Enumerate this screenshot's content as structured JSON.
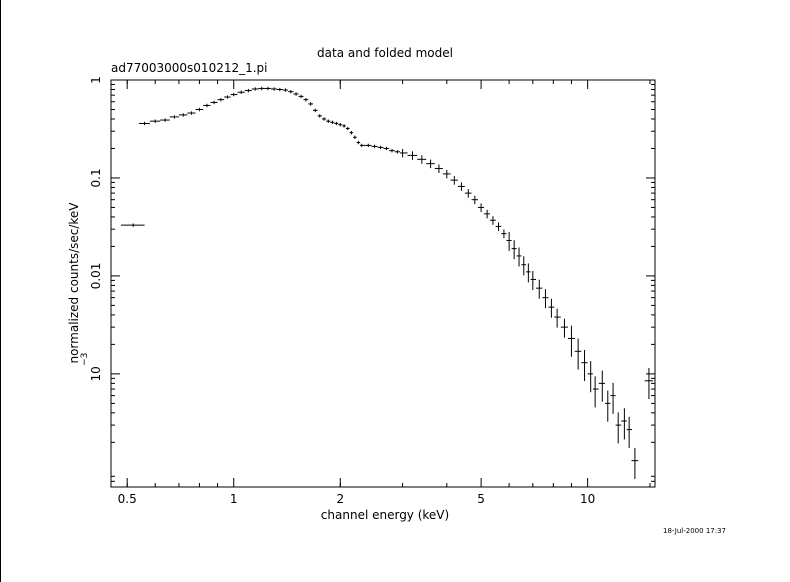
{
  "chart_data": {
    "type": "scatter",
    "title": "data and folded model",
    "subtitle": "ad77003000s010212_1.pi",
    "xlabel": "channel energy (keV)",
    "ylabel": "normalized counts/sec/keV",
    "xscale": "log",
    "yscale": "log",
    "xlim": [
      0.45,
      15.5
    ],
    "ylim": [
      7e-05,
      1.0
    ],
    "x_ticks": [
      {
        "value": 0.5,
        "label": "0.5"
      },
      {
        "value": 1,
        "label": "1"
      },
      {
        "value": 2,
        "label": "2"
      },
      {
        "value": 5,
        "label": "5"
      },
      {
        "value": 10,
        "label": "10"
      }
    ],
    "y_ticks": [
      {
        "value": 1,
        "label": "1"
      },
      {
        "value": 0.1,
        "label": "0.1"
      },
      {
        "value": 0.01,
        "label": "0.01"
      },
      {
        "value": 0.001,
        "label": "10",
        "exponent": "−3"
      }
    ],
    "timestamp": "18-Jul-2000 17:37",
    "color": "#000000",
    "series": [
      {
        "points": [
          {
            "x": 0.52,
            "y": 0.033,
            "xerr": [
              0.48,
              0.56
            ]
          },
          {
            "x": 0.56,
            "y": 0.36
          },
          {
            "x": 0.6,
            "y": 0.38
          },
          {
            "x": 0.64,
            "y": 0.39
          },
          {
            "x": 0.68,
            "y": 0.42
          },
          {
            "x": 0.72,
            "y": 0.44
          },
          {
            "x": 0.76,
            "y": 0.46
          },
          {
            "x": 0.8,
            "y": 0.5
          },
          {
            "x": 0.84,
            "y": 0.55
          },
          {
            "x": 0.88,
            "y": 0.59
          },
          {
            "x": 0.92,
            "y": 0.63
          },
          {
            "x": 0.96,
            "y": 0.67
          },
          {
            "x": 1.0,
            "y": 0.71
          },
          {
            "x": 1.05,
            "y": 0.75
          },
          {
            "x": 1.1,
            "y": 0.78
          },
          {
            "x": 1.15,
            "y": 0.81
          },
          {
            "x": 1.2,
            "y": 0.82
          },
          {
            "x": 1.25,
            "y": 0.82
          },
          {
            "x": 1.3,
            "y": 0.81
          },
          {
            "x": 1.35,
            "y": 0.8
          },
          {
            "x": 1.4,
            "y": 0.79
          },
          {
            "x": 1.45,
            "y": 0.76
          },
          {
            "x": 1.5,
            "y": 0.72
          },
          {
            "x": 1.55,
            "y": 0.68
          },
          {
            "x": 1.6,
            "y": 0.63
          },
          {
            "x": 1.65,
            "y": 0.57
          },
          {
            "x": 1.7,
            "y": 0.49
          },
          {
            "x": 1.75,
            "y": 0.43
          },
          {
            "x": 1.8,
            "y": 0.4
          },
          {
            "x": 1.85,
            "y": 0.38
          },
          {
            "x": 1.9,
            "y": 0.37
          },
          {
            "x": 1.95,
            "y": 0.36
          },
          {
            "x": 2.0,
            "y": 0.35
          },
          {
            "x": 2.05,
            "y": 0.34
          },
          {
            "x": 2.1,
            "y": 0.32
          },
          {
            "x": 2.15,
            "y": 0.29
          },
          {
            "x": 2.2,
            "y": 0.26
          },
          {
            "x": 2.25,
            "y": 0.23
          },
          {
            "x": 2.3,
            "y": 0.215
          },
          {
            "x": 2.4,
            "y": 0.215
          },
          {
            "x": 2.5,
            "y": 0.21
          },
          {
            "x": 2.6,
            "y": 0.205
          },
          {
            "x": 2.7,
            "y": 0.2
          },
          {
            "x": 2.8,
            "y": 0.19
          },
          {
            "x": 2.9,
            "y": 0.185
          },
          {
            "x": 3.0,
            "y": 0.18
          },
          {
            "x": 3.2,
            "y": 0.17
          },
          {
            "x": 3.4,
            "y": 0.155
          },
          {
            "x": 3.6,
            "y": 0.14
          },
          {
            "x": 3.8,
            "y": 0.125
          },
          {
            "x": 4.0,
            "y": 0.11
          },
          {
            "x": 4.2,
            "y": 0.095
          },
          {
            "x": 4.4,
            "y": 0.082
          },
          {
            "x": 4.6,
            "y": 0.07
          },
          {
            "x": 4.8,
            "y": 0.06
          },
          {
            "x": 5.0,
            "y": 0.05
          },
          {
            "x": 5.2,
            "y": 0.043
          },
          {
            "x": 5.4,
            "y": 0.037
          },
          {
            "x": 5.6,
            "y": 0.032
          },
          {
            "x": 5.8,
            "y": 0.027
          },
          {
            "x": 6.0,
            "y": 0.023
          },
          {
            "x": 6.2,
            "y": 0.019
          },
          {
            "x": 6.4,
            "y": 0.016
          },
          {
            "x": 6.6,
            "y": 0.013
          },
          {
            "x": 6.8,
            "y": 0.011
          },
          {
            "x": 7.0,
            "y": 0.0092
          },
          {
            "x": 7.3,
            "y": 0.0075
          },
          {
            "x": 7.6,
            "y": 0.006
          },
          {
            "x": 7.9,
            "y": 0.0048
          },
          {
            "x": 8.2,
            "y": 0.0038
          },
          {
            "x": 8.6,
            "y": 0.003
          },
          {
            "x": 9.0,
            "y": 0.0023
          },
          {
            "x": 9.4,
            "y": 0.0017
          },
          {
            "x": 9.8,
            "y": 0.0013
          },
          {
            "x": 10.2,
            "y": 0.001
          },
          {
            "x": 10.5,
            "y": 0.0007
          },
          {
            "x": 11.0,
            "y": 0.0008
          },
          {
            "x": 11.4,
            "y": 0.0005
          },
          {
            "x": 11.8,
            "y": 0.0006
          },
          {
            "x": 12.2,
            "y": 0.0003
          },
          {
            "x": 12.7,
            "y": 0.00033
          },
          {
            "x": 13.1,
            "y": 0.00027
          },
          {
            "x": 13.6,
            "y": 0.00013,
            "xerr": [
              13.3,
              13.9
            ]
          },
          {
            "x": 14.9,
            "y": 0.00085,
            "xerr": [
              14.5,
              15.3
            ]
          }
        ]
      }
    ]
  }
}
